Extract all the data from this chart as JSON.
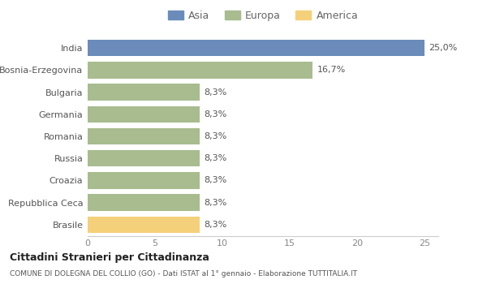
{
  "categories": [
    "India",
    "Bosnia-Erzegovina",
    "Bulgaria",
    "Germania",
    "Romania",
    "Russia",
    "Croazia",
    "Repubblica Ceca",
    "Brasile"
  ],
  "values": [
    25.0,
    16.7,
    8.3,
    8.3,
    8.3,
    8.3,
    8.3,
    8.3,
    8.3
  ],
  "colors": [
    "#6b8cba",
    "#a8bc8f",
    "#a8bc8f",
    "#a8bc8f",
    "#a8bc8f",
    "#a8bc8f",
    "#a8bc8f",
    "#a8bc8f",
    "#f5d07a"
  ],
  "labels": [
    "25,0%",
    "16,7%",
    "8,3%",
    "8,3%",
    "8,3%",
    "8,3%",
    "8,3%",
    "8,3%",
    "8,3%"
  ],
  "legend": [
    {
      "label": "Asia",
      "color": "#6b8cba"
    },
    {
      "label": "Europa",
      "color": "#a8bc8f"
    },
    {
      "label": "America",
      "color": "#f5d07a"
    }
  ],
  "xlim": [
    0,
    26
  ],
  "xticks": [
    0,
    5,
    10,
    15,
    20,
    25
  ],
  "title": "Cittadini Stranieri per Cittadinanza",
  "subtitle": "COMUNE DI DOLEGNA DEL COLLIO (GO) - Dati ISTAT al 1° gennaio - Elaborazione TUTTITALIA.IT",
  "background_color": "#ffffff",
  "grid_color": "#ffffff",
  "bar_height": 0.75
}
